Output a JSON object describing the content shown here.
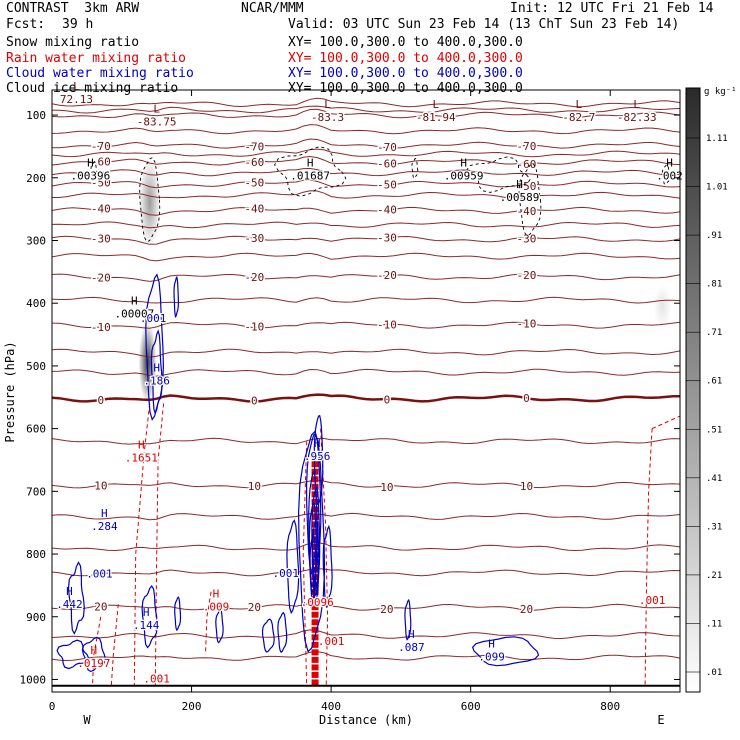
{
  "header": {
    "left_title": "CONTRAST  3km ARW",
    "center_title": "NCAR/MMM",
    "init": "Init: 12 UTC Fri 21 Feb 14",
    "fcst_label": "Fcst:",
    "fcst_value": "39 h",
    "valid": "Valid: 03 UTC Sun 23 Feb 14 (13 ChT Sun 23 Feb 14)"
  },
  "fields": [
    {
      "name": "Snow mixing ratio",
      "xy": "XY= 100.0,300.0 to 400.0,300.0",
      "color": "#000000"
    },
    {
      "name": "Rain water mixing ratio",
      "xy": "XY= 100.0,300.0 to 400.0,300.0",
      "color": "#e00000"
    },
    {
      "name": "Cloud water mixing ratio",
      "xy": "XY= 100.0,300.0 to 400.0,300.0",
      "color": "#0000c0"
    },
    {
      "name": "Cloud ice mixing ratio",
      "xy": "XY= 100.0,300.0 to 400.0,300.0",
      "color": "#000000"
    }
  ],
  "chart_data": {
    "type": "cross-section contour",
    "xlabel": "Distance (km)",
    "ylabel": "Pressure (hPa)",
    "xlim": [
      0,
      900
    ],
    "ylim": [
      1020,
      60
    ],
    "xticks": [
      0,
      200,
      400,
      600,
      800
    ],
    "yticks": [
      100,
      200,
      300,
      400,
      500,
      600,
      700,
      800,
      900,
      1000
    ],
    "x_end_labels": {
      "left": "W",
      "right": "E"
    },
    "temperature_isotherms": [
      {
        "level": -83.75,
        "p": 100,
        "label": "-83.75",
        "label_x": 150,
        "label_p": 112
      },
      {
        "level": -70,
        "p": 148,
        "label": "-70"
      },
      {
        "level": -60,
        "p": 175,
        "label": "-60"
      },
      {
        "level": -50,
        "p": 210,
        "label": "-50"
      },
      {
        "level": -40,
        "p": 252,
        "label": "-40"
      },
      {
        "level": -30,
        "p": 298,
        "label": "-30"
      },
      {
        "level": -20,
        "p": 358,
        "label": "-20"
      },
      {
        "level": -10,
        "p": 435,
        "label": "-10"
      },
      {
        "level": 0,
        "p": 552,
        "label": "0"
      },
      {
        "level": 10,
        "p": 690,
        "label": "10"
      },
      {
        "level": 20,
        "p": 885,
        "label": "20"
      }
    ],
    "extra_isotherm_pressures": [
      82,
      92,
      125,
      162,
      192,
      228,
      275,
      325,
      395,
      478,
      510,
      620,
      740,
      790,
      830,
      930,
      965
    ],
    "min_labels": [
      {
        "x": 35,
        "p": 76,
        "text": "72.13"
      },
      {
        "x": 150,
        "p": 112,
        "text": "-83.75"
      },
      {
        "x": 395,
        "p": 105,
        "text": "-83.3"
      },
      {
        "x": 550,
        "p": 105,
        "text": "-81.94"
      },
      {
        "x": 755,
        "p": 105,
        "text": "-82.7"
      },
      {
        "x": 838,
        "p": 105,
        "text": "-82.33"
      }
    ],
    "snow_shading": [
      {
        "x": 140,
        "p_top": 170,
        "p_bot": 310,
        "width_km": 25,
        "max_opacity": 0.45
      },
      {
        "x": 137,
        "p_top": 430,
        "p_bot": 560,
        "width_km": 20,
        "max_opacity": 0.9
      },
      {
        "x": 875,
        "p_top": 370,
        "p_bot": 440,
        "width_km": 20,
        "max_opacity": 0.12
      }
    ],
    "colorbar": {
      "unit": "g kg⁻¹",
      "labels": [
        "1.11",
        "1.01",
        ".91",
        ".81",
        ".71",
        ".61",
        ".51",
        ".41",
        ".31",
        ".21",
        ".11",
        ".01"
      ]
    },
    "snow_maxima": [
      {
        "x": 55,
        "p": 198,
        "h": "H",
        "value": ".00396"
      },
      {
        "x": 370,
        "p": 198,
        "h": "H",
        "value": ".01687"
      },
      {
        "x": 590,
        "p": 198,
        "h": "H",
        "value": ".00959"
      },
      {
        "x": 670,
        "p": 232,
        "h": "H",
        "value": ".00589"
      },
      {
        "x": 885,
        "p": 198,
        "h": "H",
        "value": ".002"
      },
      {
        "x": 118,
        "p": 418,
        "h": "H",
        "value": ".00007"
      }
    ],
    "rain_labels": [
      {
        "x": 128,
        "p": 648,
        "h": "H",
        "value": ".1651"
      },
      {
        "x": 60,
        "p": 975,
        "h": "H",
        "value": ".0197"
      },
      {
        "x": 235,
        "p": 885,
        "h": "H",
        "value": ".009"
      },
      {
        "x": 380,
        "p": 878,
        "h": "",
        "value": ".0096"
      },
      {
        "x": 400,
        "p": 940,
        "h": "",
        "value": ".001"
      },
      {
        "x": 150,
        "p": 1000,
        "h": "",
        "value": ".001"
      },
      {
        "x": 860,
        "p": 875,
        "h": "",
        "value": ".001"
      }
    ],
    "cloud_water_labels": [
      {
        "x": 145,
        "p": 425,
        "value": ".001"
      },
      {
        "x": 150,
        "p": 525,
        "h": "H",
        "value": ".186"
      },
      {
        "x": 75,
        "p": 757,
        "h": "H",
        "value": ".284"
      },
      {
        "x": 25,
        "p": 881,
        "h": "H",
        "value": ".442"
      },
      {
        "x": 135,
        "p": 915,
        "h": "H",
        "value": ".144"
      },
      {
        "x": 380,
        "p": 645,
        "h": "H",
        "value": ".956"
      },
      {
        "x": 335,
        "p": 832,
        "value": ".001"
      },
      {
        "x": 68,
        "p": 833,
        "value": ".001"
      },
      {
        "x": 515,
        "p": 950,
        "h": "H",
        "value": ".087"
      },
      {
        "x": 630,
        "p": 965,
        "h": "H",
        "value": ".099"
      }
    ]
  }
}
